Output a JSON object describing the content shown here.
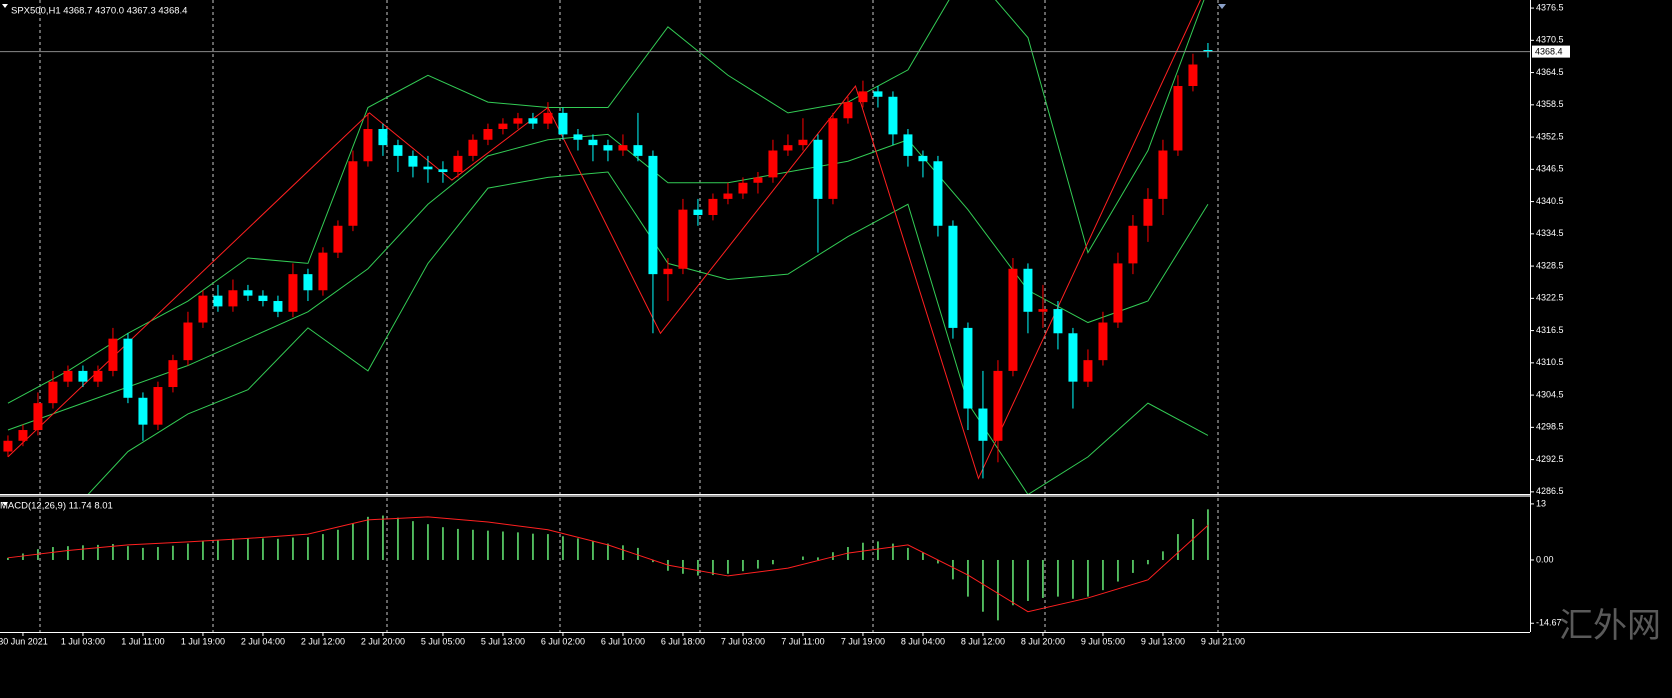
{
  "chart_data": [
    {
      "type": "candlestick",
      "title": "SPX500,H1 4368.7 4370.0 4367.3 4368.4",
      "up_color": "#ff0000",
      "down_color": "#00ffff",
      "ohlc": [
        [
          4294,
          4297,
          4293,
          4296
        ],
        [
          4296,
          4299,
          4295,
          4298
        ],
        [
          4298,
          4305,
          4297,
          4303
        ],
        [
          4303,
          4309,
          4302,
          4307
        ],
        [
          4307,
          4310,
          4306,
          4309
        ],
        [
          4309,
          4310,
          4306,
          4307
        ],
        [
          4307,
          4310,
          4306,
          4309
        ],
        [
          4309,
          4317,
          4308,
          4315
        ],
        [
          4315,
          4316,
          4303,
          4304
        ],
        [
          4304,
          4305,
          4296,
          4299
        ],
        [
          4299,
          4307,
          4298,
          4306
        ],
        [
          4306,
          4312,
          4305,
          4311
        ],
        [
          4311,
          4320,
          4310,
          4318
        ],
        [
          4318,
          4324,
          4317,
          4323
        ],
        [
          4323,
          4325,
          4320,
          4321
        ],
        [
          4321,
          4326,
          4320,
          4324
        ],
        [
          4324,
          4325,
          4322,
          4323
        ],
        [
          4323,
          4324,
          4321,
          4322
        ],
        [
          4322,
          4323,
          4319,
          4320
        ],
        [
          4320,
          4329,
          4319,
          4327
        ],
        [
          4327,
          4328,
          4322,
          4324
        ],
        [
          4324,
          4332,
          4323,
          4331
        ],
        [
          4331,
          4337,
          4330,
          4336
        ],
        [
          4336,
          4350,
          4335,
          4348
        ],
        [
          4348,
          4357,
          4347,
          4354
        ],
        [
          4354,
          4355,
          4349,
          4351
        ],
        [
          4351,
          4352,
          4346,
          4349
        ],
        [
          4349,
          4350,
          4345,
          4347
        ],
        [
          4347,
          4349,
          4344,
          4346.5
        ],
        [
          4346.5,
          4348,
          4344,
          4346
        ],
        [
          4346,
          4350,
          4345,
          4349
        ],
        [
          4349,
          4353,
          4348,
          4352
        ],
        [
          4352,
          4355,
          4351,
          4354
        ],
        [
          4354,
          4356,
          4353,
          4355
        ],
        [
          4355,
          4357,
          4354,
          4356
        ],
        [
          4356,
          4357,
          4354,
          4355
        ],
        [
          4355,
          4359,
          4354,
          4357
        ],
        [
          4357,
          4358,
          4352,
          4353
        ],
        [
          4353,
          4354,
          4350,
          4352
        ],
        [
          4352,
          4353,
          4348,
          4351
        ],
        [
          4351,
          4352,
          4348,
          4350
        ],
        [
          4350,
          4353,
          4349,
          4351
        ],
        [
          4351,
          4357,
          4348,
          4349
        ],
        [
          4349,
          4350,
          4316,
          4327
        ],
        [
          4327,
          4330,
          4322,
          4328
        ],
        [
          4328,
          4341,
          4327,
          4339
        ],
        [
          4339,
          4341,
          4336,
          4338
        ],
        [
          4338,
          4342,
          4337,
          4341
        ],
        [
          4341,
          4344,
          4340,
          4342
        ],
        [
          4342,
          4345,
          4341,
          4344
        ],
        [
          4344,
          4346,
          4342,
          4345
        ],
        [
          4345,
          4352,
          4344,
          4350
        ],
        [
          4350,
          4353,
          4349,
          4351
        ],
        [
          4351,
          4356,
          4350,
          4352
        ],
        [
          4352,
          4353,
          4331,
          4341
        ],
        [
          4341,
          4357,
          4340,
          4356
        ],
        [
          4356,
          4360,
          4355,
          4359
        ],
        [
          4359,
          4363,
          4358,
          4361
        ],
        [
          4361,
          4362,
          4358,
          4360
        ],
        [
          4360,
          4361,
          4351,
          4353
        ],
        [
          4353,
          4354,
          4347,
          4349
        ],
        [
          4349,
          4350,
          4345,
          4348
        ],
        [
          4348,
          4349,
          4334,
          4336
        ],
        [
          4336,
          4337,
          4315,
          4317
        ],
        [
          4317,
          4318,
          4298,
          4302
        ],
        [
          4302,
          4309,
          4289,
          4296
        ],
        [
          4296,
          4311,
          4292,
          4309
        ],
        [
          4309,
          4330,
          4308,
          4328
        ],
        [
          4328,
          4329,
          4316,
          4320
        ],
        [
          4320,
          4325,
          4317,
          4320.5
        ],
        [
          4320.5,
          4322,
          4313,
          4316
        ],
        [
          4316,
          4317,
          4302,
          4307
        ],
        [
          4307,
          4313,
          4306,
          4311
        ],
        [
          4311,
          4320,
          4310,
          4318
        ],
        [
          4318,
          4331,
          4317,
          4329
        ],
        [
          4329,
          4338,
          4327,
          4336
        ],
        [
          4336,
          4343,
          4333,
          4341
        ],
        [
          4341,
          4352,
          4338,
          4350
        ],
        [
          4350,
          4364,
          4349,
          4362
        ],
        [
          4362,
          4368,
          4361,
          4366
        ],
        [
          4368.7,
          4370.0,
          4367.3,
          4368.4
        ]
      ],
      "overlays": [
        {
          "color": "#33cc55",
          "x": [
            0,
            4,
            8,
            12,
            16,
            20,
            24,
            28,
            32,
            36,
            40,
            44,
            48,
            52,
            56,
            60,
            64,
            68,
            72,
            76,
            80
          ],
          "values": [
            4303,
            4309,
            4316,
            4322,
            4330,
            4329,
            4358,
            4364,
            4359,
            4358,
            4358,
            4373,
            4364,
            4357,
            4359,
            4365,
            4384,
            4371,
            4331,
            4350,
            4380
          ]
        },
        {
          "color": "#33cc55",
          "x": [
            0,
            4,
            8,
            12,
            16,
            20,
            24,
            28,
            32,
            36,
            40,
            44,
            48,
            52,
            56,
            60,
            64,
            68,
            72,
            76,
            80
          ],
          "values": [
            4298,
            4302,
            4306,
            4310,
            4315,
            4320,
            4328,
            4340,
            4349,
            4352,
            4353,
            4344,
            4344,
            4346,
            4348,
            4352,
            4339,
            4324,
            4318,
            4322,
            4340
          ]
        },
        {
          "color": "#33cc55",
          "x": [
            0,
            4,
            8,
            12,
            16,
            20,
            24,
            28,
            32,
            36,
            40,
            44,
            48,
            52,
            56,
            60,
            64,
            68,
            72,
            76,
            80
          ],
          "values": [
            4272,
            4282,
            4294,
            4301,
            4305.5,
            4317,
            4309,
            4329,
            4343,
            4345,
            4346,
            4329,
            4326,
            4327,
            4334,
            4340,
            4303,
            4286,
            4293,
            4303,
            4297
          ]
        },
        {
          "color": "#ff2020",
          "x": [
            0,
            24.1,
            29.6,
            36,
            43.5,
            56.5,
            64.7,
            79.5
          ],
          "values": [
            4293,
            4357,
            4344.5,
            4358,
            4316,
            4362,
            4289,
            4378
          ]
        }
      ],
      "last_price": 4368.4,
      "xlim": [
        -0.53,
        101.47
      ],
      "xticks": [
        {
          "value": 1,
          "label": "30 Jun 2021"
        },
        {
          "value": 5,
          "label": "1 Jul 03:00"
        },
        {
          "value": 9,
          "label": "1 Jul 11:00"
        },
        {
          "value": 13,
          "label": "1 Jul 19:00"
        },
        {
          "value": 17,
          "label": "2 Jul 04:00"
        },
        {
          "value": 21,
          "label": "2 Jul 12:00"
        },
        {
          "value": 25,
          "label": "2 Jul 20:00"
        },
        {
          "value": 29,
          "label": "5 Jul 05:00"
        },
        {
          "value": 33,
          "label": "5 Jul 13:00"
        },
        {
          "value": 37,
          "label": "6 Jul 02:00"
        },
        {
          "value": 41,
          "label": "6 Jul 10:00"
        },
        {
          "value": 45,
          "label": "6 Jul 18:00"
        },
        {
          "value": 49,
          "label": "7 Jul 03:00"
        },
        {
          "value": 53,
          "label": "7 Jul 11:00"
        },
        {
          "value": 57,
          "label": "7 Jul 19:00"
        },
        {
          "value": 61,
          "label": "8 Jul 04:00"
        },
        {
          "value": 65,
          "label": "8 Jul 12:00"
        },
        {
          "value": 69,
          "label": "8 Jul 20:00"
        },
        {
          "value": 73,
          "label": "9 Jul 05:00"
        },
        {
          "value": 77,
          "label": "9 Jul 13:00"
        },
        {
          "value": 81,
          "label": "9 Jul 21:00"
        }
      ],
      "ylim": [
        4286.1,
        4378
      ],
      "yticks": [
        4286.5,
        4292.5,
        4298.5,
        4304.5,
        4310.5,
        4316.5,
        4322.5,
        4328.5,
        4334.5,
        4340.5,
        4346.5,
        4352.5,
        4358.5,
        4364.5,
        4370.5,
        4376.5
      ]
    },
    {
      "type": "macd",
      "title": "MACD(12,26,9) 11.74 8.01",
      "color": "#66ee77",
      "values": [
        0.5,
        1.5,
        2.5,
        3,
        3.2,
        3.4,
        3.5,
        3.7,
        3.2,
        2.8,
        3.0,
        3.3,
        3.8,
        4.3,
        4.6,
        4.9,
        5.0,
        5.0,
        4.9,
        5.2,
        5.3,
        6.0,
        7.0,
        8.5,
        10.0,
        10.3,
        9.8,
        9.0,
        8.3,
        7.6,
        7.2,
        7.0,
        6.8,
        6.6,
        6.4,
        6.1,
        6.0,
        5.5,
        5.0,
        4.4,
        3.8,
        3.4,
        2.8,
        -0.5,
        -2.5,
        -3.2,
        -3.6,
        -3.5,
        -3.2,
        -2.6,
        -2.0,
        -1.0,
        0.0,
        0.8,
        0.6,
        1.8,
        3.0,
        4.0,
        4.3,
        3.8,
        2.8,
        1.8,
        -0.8,
        -4.5,
        -8.5,
        -12.0,
        -14.0,
        -10.5,
        -9.5,
        -8.8,
        -8.5,
        -9.0,
        -8.5,
        -7.0,
        -5.0,
        -3.0,
        -1.0,
        2.0,
        6.0,
        9.5,
        11.74
      ],
      "signal": {
        "color": "#ff2020",
        "x": [
          0,
          4,
          8,
          12,
          16,
          20,
          24,
          28,
          32,
          36,
          40,
          44,
          48,
          52,
          56,
          60,
          64,
          68,
          72,
          76,
          80
        ],
        "values": [
          0.5,
          2.2,
          3.5,
          4.2,
          5.0,
          6.0,
          9.3,
          10,
          8.8,
          7,
          3.5,
          -1.2,
          -3.7,
          -1.9,
          1.6,
          3.5,
          -3.5,
          -12,
          -8.8,
          -4.6,
          8.01
        ]
      },
      "ylim": [
        -16.7,
        14.6
      ],
      "yticks": [
        13,
        {
          "value": 0,
          "label": "0.00"
        },
        -14.67
      ]
    }
  ],
  "watermark": "汇外网"
}
